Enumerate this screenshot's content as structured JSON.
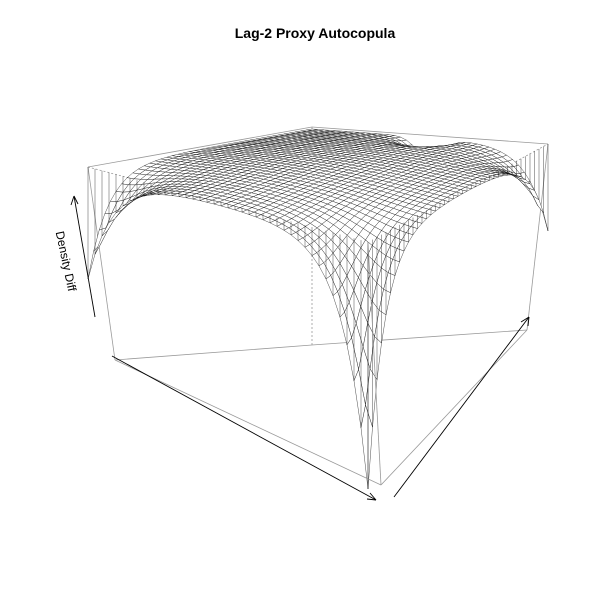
{
  "chart_data": {
    "type": "surface",
    "title": "Lag-2 Proxy Autocopula",
    "zlabel": "Density Diff",
    "xlabel": "",
    "ylabel": "",
    "x_range": [
      0,
      1
    ],
    "y_range": [
      0,
      1
    ],
    "grid_resolution": 40,
    "surface": "perspective wireframe mesh; near-flat plateau with sharp downward spikes at all four corners (deepest at front corner) and a shallow dip at the center of the back edge",
    "colors": {
      "mesh": "#000000",
      "box": "#9a9a9a",
      "background": "#ffffff"
    }
  }
}
